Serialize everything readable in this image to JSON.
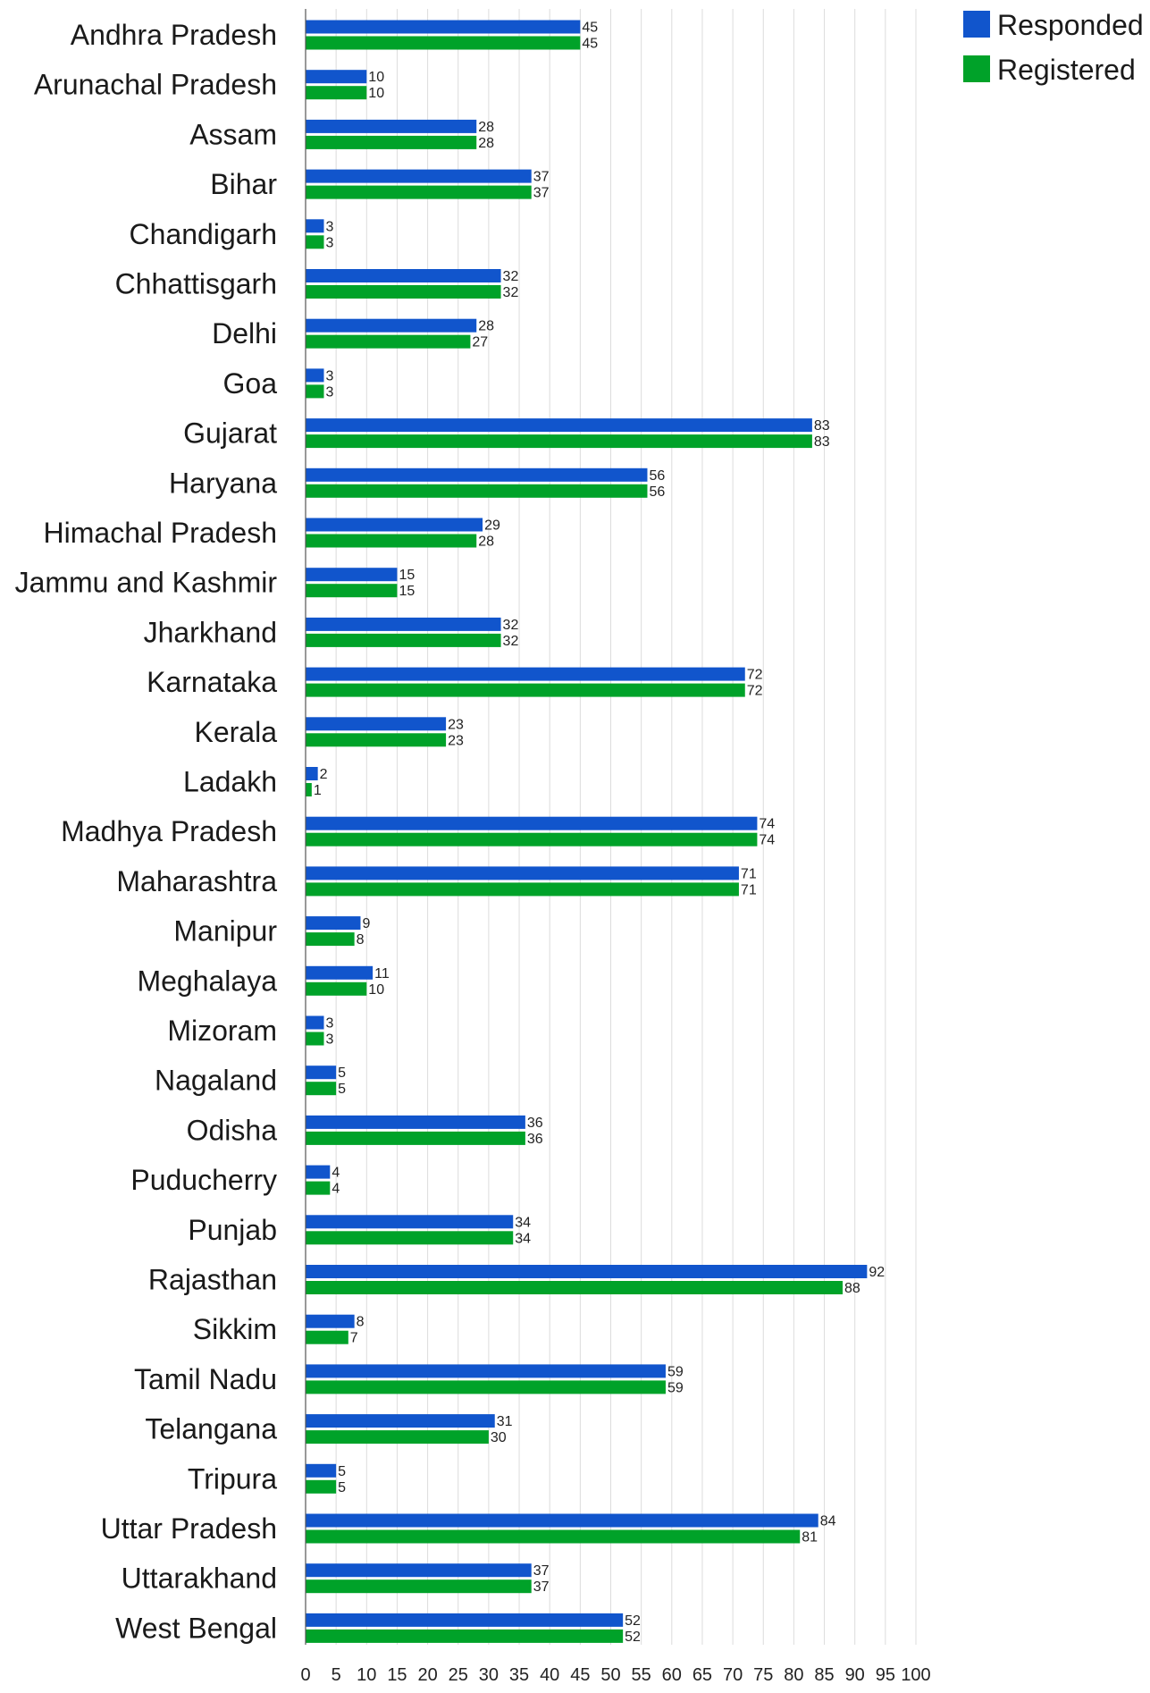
{
  "chart_data": {
    "type": "bar",
    "orientation": "horizontal",
    "categories": [
      "Andhra Pradesh",
      "Arunachal Pradesh",
      "Assam",
      "Bihar",
      "Chandigarh",
      "Chhattisgarh",
      "Delhi",
      "Goa",
      "Gujarat",
      "Haryana",
      "Himachal Pradesh",
      "Jammu and Kashmir",
      "Jharkhand",
      "Karnataka",
      "Kerala",
      "Ladakh",
      "Madhya Pradesh",
      "Maharashtra",
      "Manipur",
      "Meghalaya",
      "Mizoram",
      "Nagaland",
      "Odisha",
      "Puducherry",
      "Punjab",
      "Rajasthan",
      "Sikkim",
      "Tamil Nadu",
      "Telangana",
      "Tripura",
      "Uttar Pradesh",
      "Uttarakhand",
      "West Bengal"
    ],
    "series": [
      {
        "name": "Responded",
        "color": "#1155cc",
        "values": [
          45,
          10,
          28,
          37,
          3,
          32,
          28,
          3,
          83,
          56,
          29,
          15,
          32,
          72,
          23,
          2,
          74,
          71,
          9,
          11,
          3,
          5,
          36,
          4,
          34,
          92,
          8,
          59,
          31,
          5,
          84,
          37,
          52
        ]
      },
      {
        "name": "Registered",
        "color": "#00a229",
        "values": [
          45,
          10,
          28,
          37,
          3,
          32,
          27,
          3,
          83,
          56,
          28,
          15,
          32,
          72,
          23,
          1,
          74,
          71,
          8,
          10,
          3,
          5,
          36,
          4,
          34,
          88,
          7,
          59,
          30,
          5,
          81,
          37,
          52
        ]
      }
    ],
    "xlim": [
      0,
      100
    ],
    "xticks": [
      0,
      5,
      10,
      15,
      20,
      25,
      30,
      35,
      40,
      45,
      50,
      55,
      60,
      65,
      70,
      75,
      80,
      85,
      90,
      95,
      100
    ],
    "grid": true,
    "legend_position": "top-right",
    "data_labels": true
  }
}
